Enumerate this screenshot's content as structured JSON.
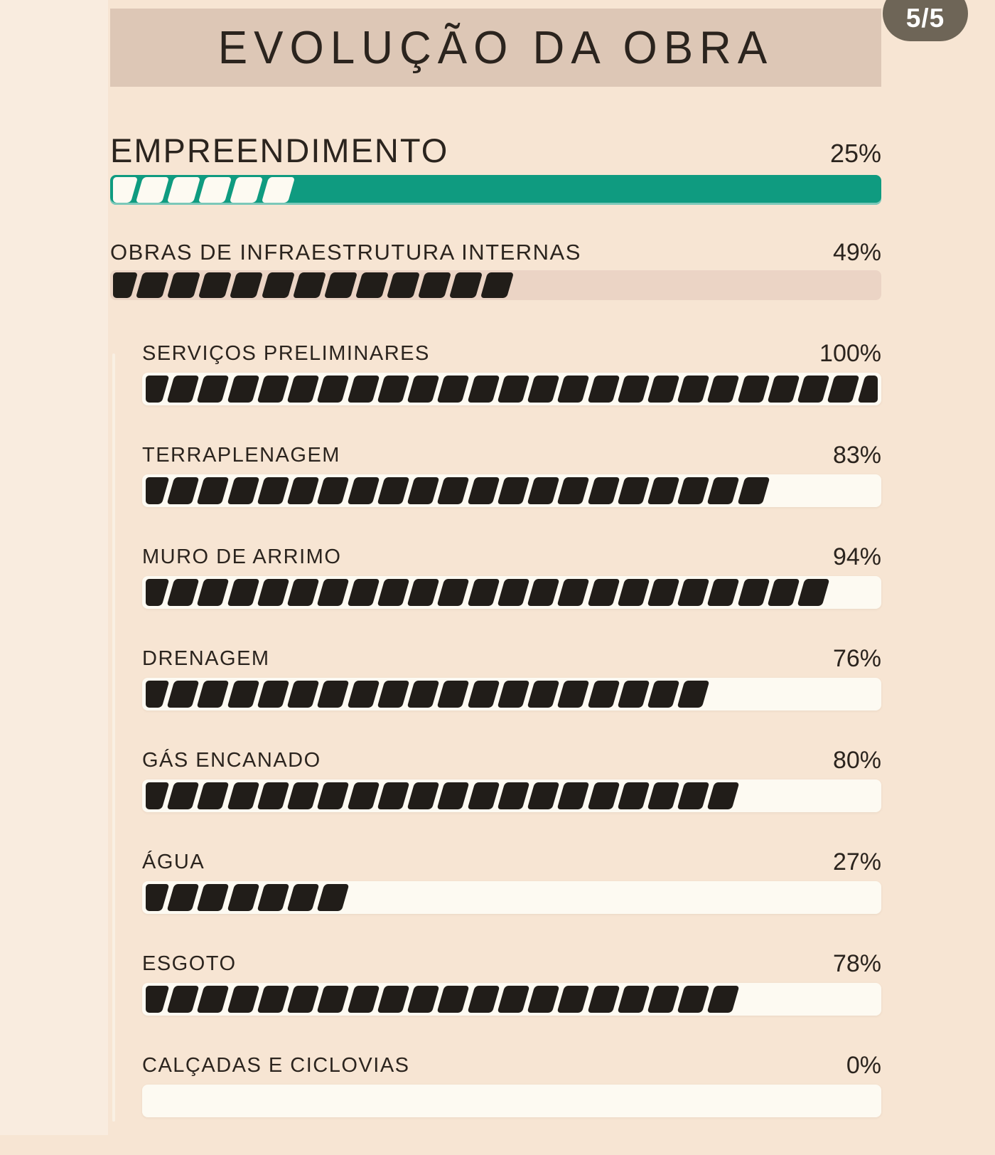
{
  "page_indicator": "5/5",
  "header": {
    "title": "EVOLUÇÃO DA OBRA"
  },
  "bars": {
    "empreendimento": {
      "label": "EMPREENDIMENTO",
      "percent_label": "25%",
      "value": 25,
      "segments": 6,
      "variant": "green"
    },
    "infraestrutura": {
      "label": "OBRAS DE INFRAESTRUTURA INTERNAS",
      "percent_label": "49%",
      "value": 49,
      "segments": 13,
      "variant": "pink"
    },
    "sub": [
      {
        "label": "SERVIÇOS PRELIMINARES",
        "percent_label": "100%",
        "value": 100,
        "segments": 25
      },
      {
        "label": "TERRAPLENAGEM",
        "percent_label": "83%",
        "value": 83,
        "segments": 21
      },
      {
        "label": "MURO DE ARRIMO",
        "percent_label": "94%",
        "value": 94,
        "segments": 23
      },
      {
        "label": "DRENAGEM",
        "percent_label": "76%",
        "value": 76,
        "segments": 19
      },
      {
        "label": "GÁS ENCANADO",
        "percent_label": "80%",
        "value": 80,
        "segments": 20
      },
      {
        "label": "ÁGUA",
        "percent_label": "27%",
        "value": 27,
        "segments": 7
      },
      {
        "label": "ESGOTO",
        "percent_label": "78%",
        "value": 78,
        "segments": 20
      },
      {
        "label": "CALÇADAS E CICLOVIAS",
        "percent_label": "0%",
        "value": 0,
        "segments": 0
      }
    ]
  },
  "colors": {
    "background": "#f7e5d3",
    "banner": "#ddc7b6",
    "accent_green": "#0f9b80",
    "segment_black": "#211d19",
    "track_white": "#fdfaf2",
    "track_pink": "#ebd4c5",
    "text": "#2b241e",
    "badge_background": "#6e6557",
    "badge_text": "#ffffff"
  },
  "chart_data": {
    "type": "bar",
    "orientation": "horizontal",
    "title": "EVOLUÇÃO DA OBRA",
    "unit": "%",
    "xlim": [
      0,
      100
    ],
    "page_indicator": "5/5",
    "categories": [
      "EMPREENDIMENTO",
      "OBRAS DE INFRAESTRUTURA INTERNAS",
      "SERVIÇOS PRELIMINARES",
      "TERRAPLENAGEM",
      "MURO DE ARRIMO",
      "DRENAGEM",
      "GÁS ENCANADO",
      "ÁGUA",
      "ESGOTO",
      "CALÇADAS E CICLOVIAS"
    ],
    "values": [
      25,
      49,
      100,
      83,
      94,
      76,
      80,
      27,
      78,
      0
    ],
    "hierarchy": [
      "main",
      "main",
      "sub",
      "sub",
      "sub",
      "sub",
      "sub",
      "sub",
      "sub",
      "sub"
    ],
    "bar_styles": [
      "green track with white hatch fill",
      "pink track with black hatch fill",
      "white track with black hatch fill",
      "white track with black hatch fill",
      "white track with black hatch fill",
      "white track with black hatch fill",
      "white track with black hatch fill",
      "white track with black hatch fill",
      "white track with black hatch fill",
      "white track with black hatch fill"
    ]
  }
}
